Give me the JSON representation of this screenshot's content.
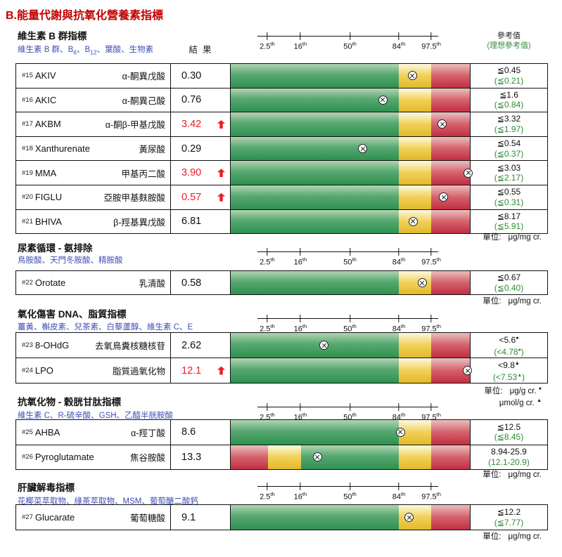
{
  "page_title": "B.能量代謝與抗氧化營養素指標",
  "headers": {
    "result": "結  果",
    "ref_line1": "參考值",
    "ref_line2": "(理想參考值)"
  },
  "axis": {
    "labels": [
      "2.5",
      "16",
      "50",
      "84",
      "97.5"
    ],
    "suffix": "th"
  },
  "colors": {
    "title_red": "#c00000",
    "abnormal_red": "#ee1c25",
    "subtitle_blue": "#4050b4",
    "ideal_green": "#2e8b34",
    "bar_green": "#2e9150",
    "bar_yellow": "#e2b92b",
    "bar_red": "#c22f42"
  },
  "sections": [
    {
      "title": "維生素 B 群指標",
      "subtitle": "維生素 B 群、B6、B12、葉酸、生物素",
      "show_headers": true,
      "unit": {
        "label": "單位:",
        "lines": [
          "μg/mg cr."
        ]
      },
      "rows": [
        {
          "num": "#15",
          "name": "AKIV",
          "cn": "α-酮異戊酸",
          "result": "0.30",
          "high": false,
          "marker_pct": 75.9,
          "ref": "≦0.45",
          "ref_ideal": "(≦0.21)",
          "range": "upper"
        },
        {
          "num": "#16",
          "name": "AKIC",
          "cn": "α-酮異己酸",
          "result": "0.76",
          "high": false,
          "marker_pct": 63.6,
          "ref": "≦1.6",
          "ref_ideal": "(≦0.84)",
          "range": "upper"
        },
        {
          "num": "#17",
          "name": "AKBM",
          "cn": "α-酮β-甲基戊酸",
          "result": "3.42",
          "high": true,
          "marker_pct": 88.5,
          "ref": "≦3.32",
          "ref_ideal": "(≦1.97)",
          "range": "upper"
        },
        {
          "num": "#18",
          "name": "Xanthurenate",
          "cn": "黃尿酸",
          "result": "0.29",
          "high": false,
          "marker_pct": 55.2,
          "ref": "≦0.54",
          "ref_ideal": "(≦0.37)",
          "range": "upper"
        },
        {
          "num": "#19",
          "name": "MMA",
          "cn": "甲基丙二酸",
          "result": "3.90",
          "high": true,
          "marker_pct": 99.3,
          "ref": "≦3.03",
          "ref_ideal": "(≦2.17)",
          "range": "upper"
        },
        {
          "num": "#20",
          "name": "FIGLU",
          "cn": "亞胺甲基麩胺酸",
          "result": "0.57",
          "high": true,
          "marker_pct": 89.1,
          "ref": "≦0.55",
          "ref_ideal": "(≦0.31)",
          "range": "upper"
        },
        {
          "num": "#21",
          "name": "BHIVA",
          "cn": "β-羥基異戊酸",
          "result": "6.81",
          "high": false,
          "marker_pct": 76.2,
          "ref": "≦8.17",
          "ref_ideal": "(≦5.91)",
          "range": "upper"
        }
      ]
    },
    {
      "title": "尿素循環 - 氨排除",
      "subtitle": "鳥胺酸、天門冬胺酸、精胺酸",
      "show_headers": false,
      "unit": {
        "label": "單位:",
        "lines": [
          "μg/mg cr."
        ]
      },
      "rows": [
        {
          "num": "#22",
          "name": "Orotate",
          "cn": "乳清酸",
          "result": "0.58",
          "high": false,
          "marker_pct": 80.1,
          "ref": "≦0.67",
          "ref_ideal": "(≦0.40)",
          "range": "upper"
        }
      ]
    },
    {
      "title": "氧化傷害 DNA、脂質指標",
      "subtitle": "薑黃、槲皮素、兒茶素、白藜蘆醇、維生素 C、E",
      "show_headers": false,
      "unit": {
        "label": "單位:",
        "lines": [
          "μg/g cr. ●",
          "μmol/g cr. ▲"
        ]
      },
      "rows": [
        {
          "num": "#23",
          "name": "8-OHdG",
          "cn": "去氧鳥糞核糖核苷",
          "result": "2.62",
          "high": false,
          "marker_pct": 39.0,
          "ref": "<5.6●",
          "ref_ideal": "(<4.78●)",
          "range": "upper"
        },
        {
          "num": "#24",
          "name": "LPO",
          "cn": "脂質過氧化物",
          "result": "12.1",
          "high": true,
          "marker_pct": 99.1,
          "ref": "<9.8▲",
          "ref_ideal": "(<7.53▲)",
          "range": "upper"
        }
      ]
    },
    {
      "title": "抗氧化物 - 穀胱甘肽指標",
      "subtitle": "維生素 C、R-硫辛酸、GSH、乙醯半胱胺酸",
      "show_headers": false,
      "unit": {
        "label": "單位:",
        "lines": [
          "μg/mg cr."
        ]
      },
      "rows": [
        {
          "num": "#25",
          "name": "AHBA",
          "cn": "α-羥丁酸",
          "result": "8.6",
          "high": false,
          "marker_pct": 70.9,
          "ref": "≦12.5",
          "ref_ideal": "(≦8.45)",
          "range": "upper"
        },
        {
          "num": "#26",
          "name": "Pyroglutamate",
          "cn": "焦谷胺酸",
          "result": "13.3",
          "high": false,
          "marker_pct": 36.3,
          "ref": "8.94-25.9",
          "ref_ideal": "(12.1-20.9)",
          "range": "both"
        }
      ]
    },
    {
      "title": "肝臟解毒指標",
      "subtitle": "花椰菜萃取物、綠茶萃取物、MSM、葡萄醣二酸鈣",
      "show_headers": false,
      "unit": {
        "label": "單位:",
        "lines": [
          "μg/mg cr."
        ]
      },
      "rows": [
        {
          "num": "#27",
          "name": "Glucarate",
          "cn": "葡萄糖酸",
          "result": "9.1",
          "high": false,
          "marker_pct": 74.7,
          "ref": "≦12.2",
          "ref_ideal": "(≦7.77)",
          "range": "upper"
        }
      ]
    }
  ]
}
